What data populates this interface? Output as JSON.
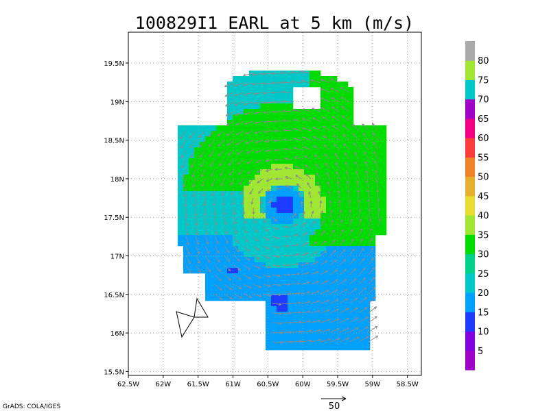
{
  "chart_data": {
    "type": "heatmap",
    "title": "100829I1 EARL at 5 km (m/s)",
    "x_ticks": [
      "62.5W",
      "62W",
      "61.5W",
      "61W",
      "60.5W",
      "60W",
      "59.5W",
      "59W",
      "58.5W"
    ],
    "y_ticks": [
      "19.5N",
      "19N",
      "18.5N",
      "18N",
      "17.5N",
      "17N",
      "16.5N",
      "16N",
      "15.5N"
    ],
    "xlim": [
      -62.5,
      -58.3
    ],
    "ylim": [
      15.45,
      19.9
    ],
    "grid": true,
    "colorbar": {
      "labels": [
        "5",
        "10",
        "15",
        "20",
        "25",
        "30",
        "35",
        "40",
        "45",
        "50",
        "55",
        "60",
        "65",
        "70",
        "75",
        "80"
      ],
      "colors": [
        "#a000c8",
        "#8200dc",
        "#1e3cff",
        "#00a0ff",
        "#00c8c8",
        "#00d28c",
        "#00dc00",
        "#a0e632",
        "#e6dc32",
        "#e6af2d",
        "#f08228",
        "#fa3c3c",
        "#f00082",
        "#a000c8",
        "#00c8c8",
        "#a0e632",
        "#aaaaaa"
      ]
    },
    "storm_center": {
      "lon": -60.28,
      "lat": 17.65
    },
    "reference_vector": {
      "label": "50",
      "magnitude": 50
    }
  },
  "credit": "GrADS: COLA/IGES"
}
